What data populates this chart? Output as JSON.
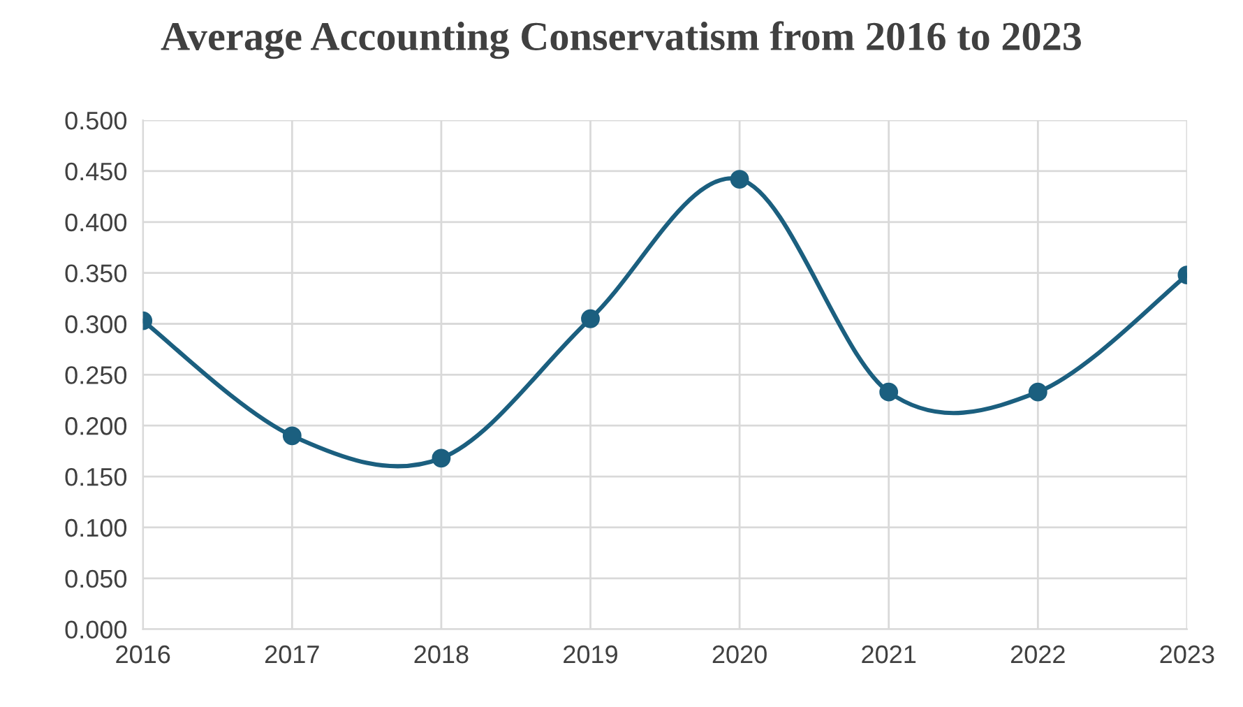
{
  "chart_data": {
    "type": "line",
    "title": "Average Accounting Conservatism from 2016 to 2023",
    "x": [
      2016,
      2017,
      2018,
      2019,
      2020,
      2021,
      2022,
      2023
    ],
    "series": [
      {
        "color": "#1b5f7f",
        "values": [
          0.303,
          0.19,
          0.168,
          0.305,
          0.442,
          0.233,
          0.233,
          0.348
        ]
      }
    ],
    "xlim": [
      2016,
      2023
    ],
    "xticks": [
      2016,
      2017,
      2018,
      2019,
      2020,
      2021,
      2022,
      2023
    ],
    "ylim": [
      0,
      0.5
    ],
    "yticks": [
      {
        "value": 0,
        "label": "0.000"
      },
      {
        "value": 0.05,
        "label": "0.050"
      },
      {
        "value": 0.1,
        "label": "0.100"
      },
      {
        "value": 0.15,
        "label": "0.150"
      },
      {
        "value": 0.2,
        "label": "0.200"
      },
      {
        "value": 0.25,
        "label": "0.250"
      },
      {
        "value": 0.3,
        "label": "0.300"
      },
      {
        "value": 0.35,
        "label": "0.350"
      },
      {
        "value": 0.4,
        "label": "0.400"
      },
      {
        "value": 0.45,
        "label": "0.450"
      },
      {
        "value": 0.5,
        "label": "0.500"
      }
    ],
    "grid": true,
    "marker": "circle",
    "line_style": "solid"
  }
}
